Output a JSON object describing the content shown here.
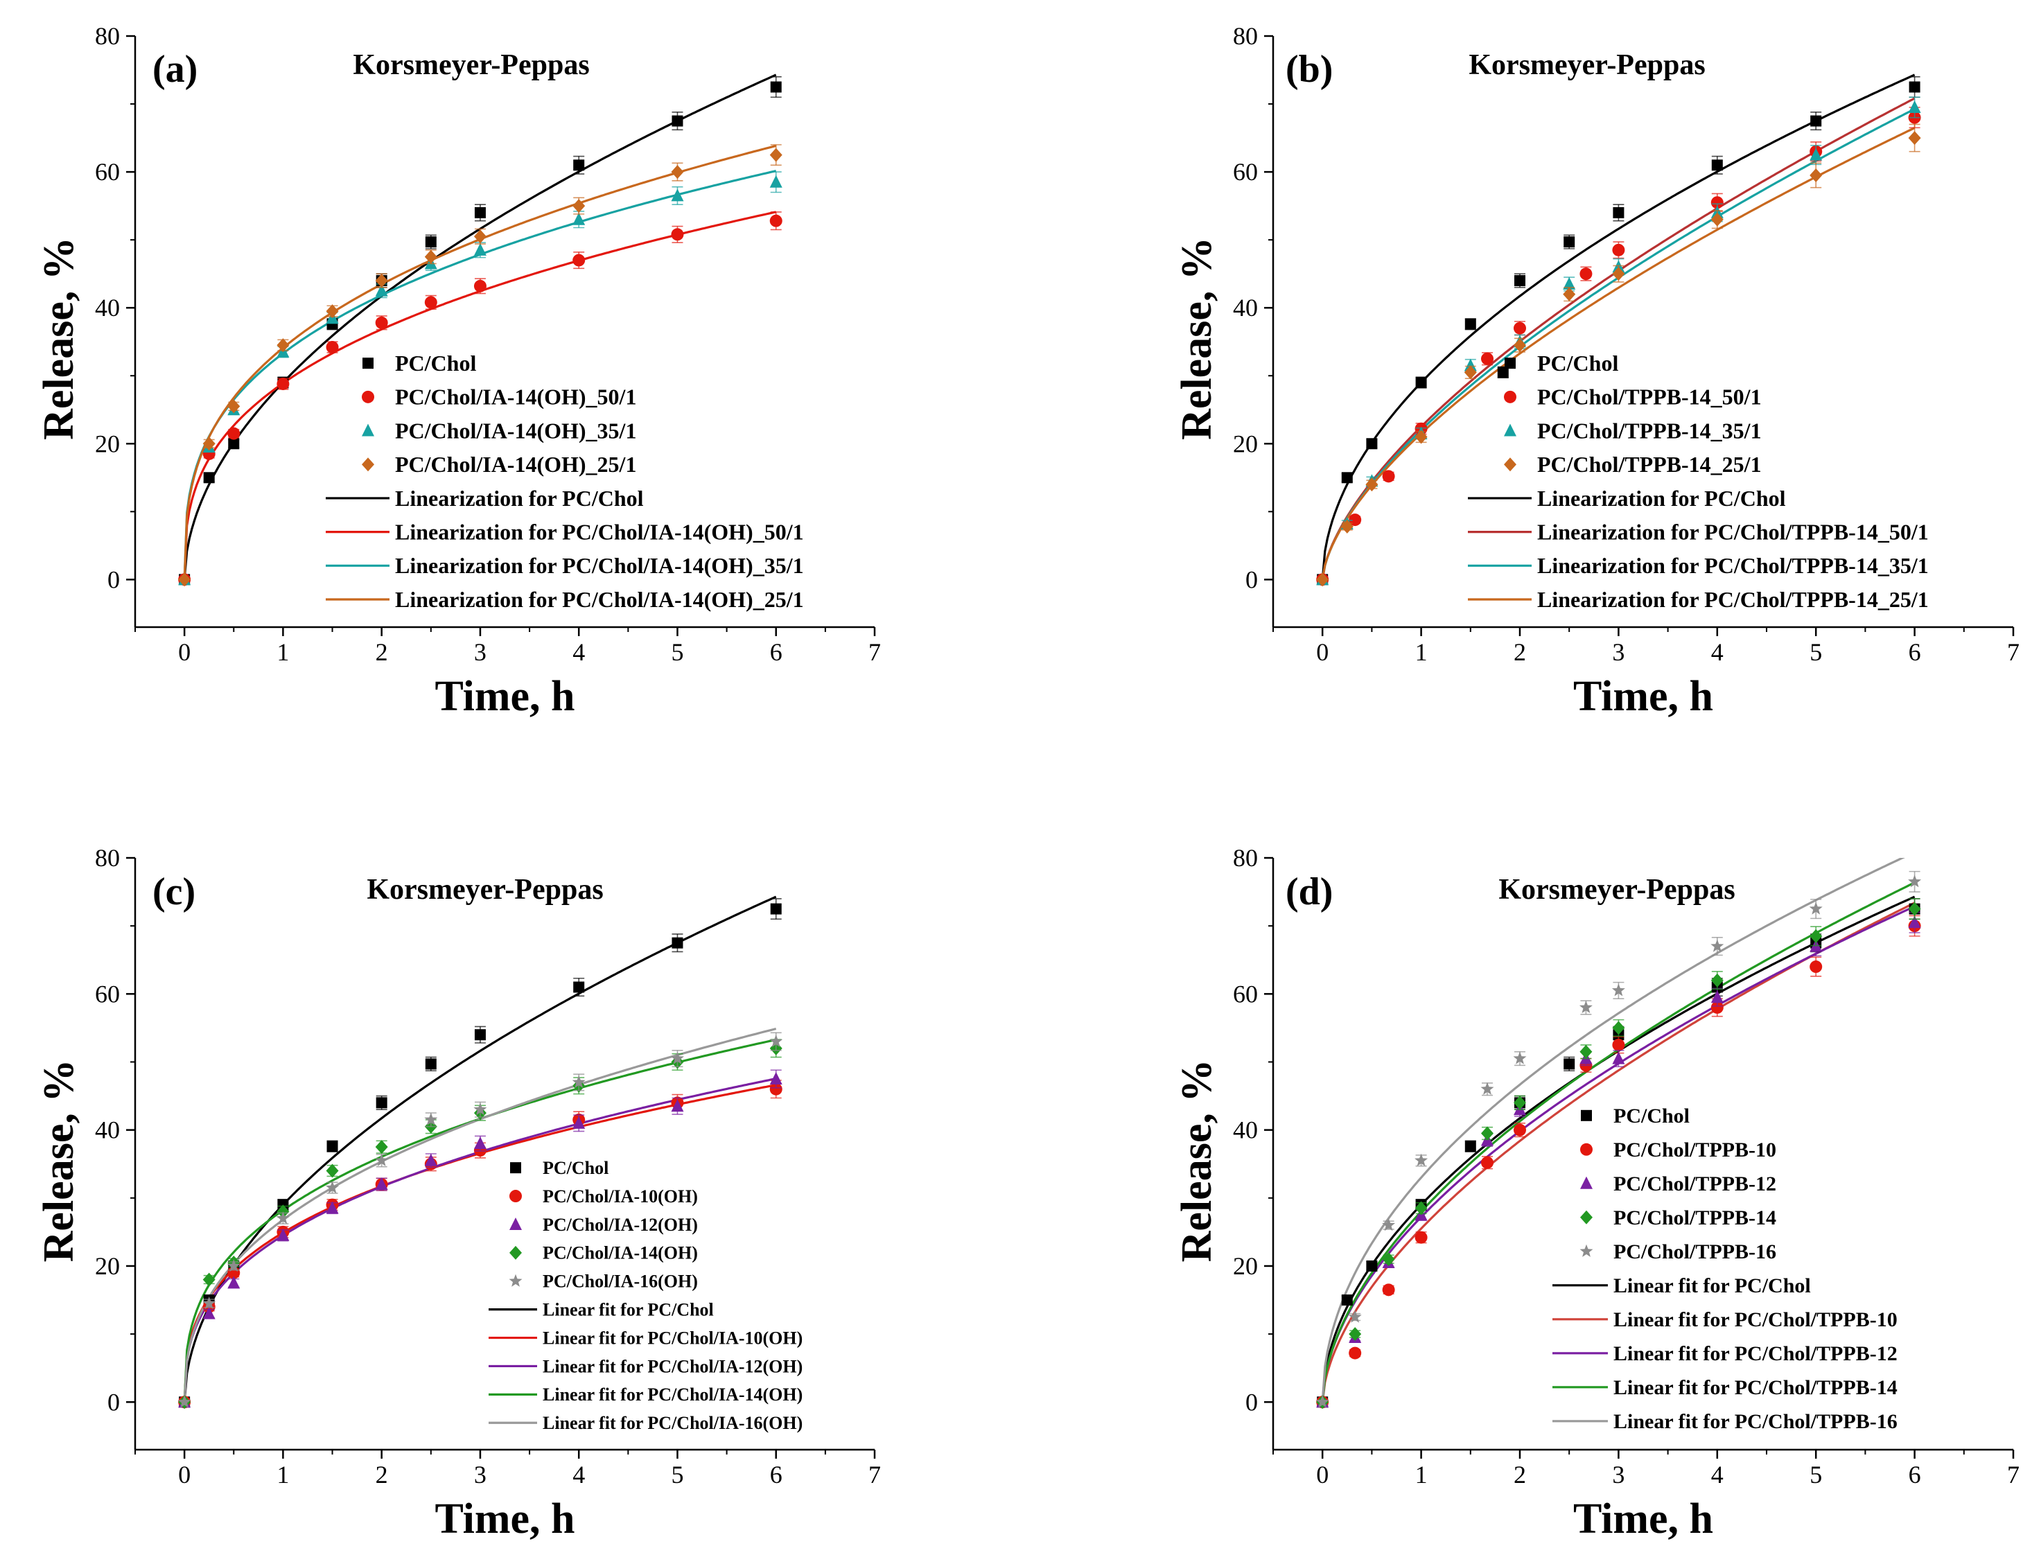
{
  "chart_data": [
    {
      "type": "scatter",
      "panel_label": "(a)",
      "title": "Korsmeyer-Peppas",
      "xlabel": "Time, h",
      "ylabel": "Release, %",
      "xlim": [
        -0.5,
        7
      ],
      "ylim": [
        -7,
        80
      ],
      "xticks": [
        0,
        1,
        2,
        3,
        4,
        5,
        6,
        7
      ],
      "yticks": [
        0,
        20,
        40,
        60,
        80
      ],
      "legend_position": "center-right",
      "series": [
        {
          "name": "PC/Chol",
          "marker": "square",
          "color": "#000000",
          "x": [
            0,
            0.25,
            0.5,
            1,
            1.5,
            2,
            2.5,
            3,
            4,
            5,
            6
          ],
          "y": [
            0,
            15.0,
            20.0,
            29.0,
            37.6,
            44.0,
            49.7,
            54.0,
            61.0,
            67.5,
            72.5
          ],
          "err": [
            0,
            0.6,
            0.6,
            0.8,
            0.8,
            1.0,
            1.0,
            1.2,
            1.3,
            1.3,
            1.5
          ]
        },
        {
          "name": "PC/Chol/IA-14(OH)_50/1",
          "marker": "circle",
          "color": "#e3170d",
          "x": [
            0,
            0.25,
            0.5,
            1,
            1.5,
            2,
            2.5,
            3,
            4,
            5,
            6
          ],
          "y": [
            0,
            18.5,
            21.5,
            28.8,
            34.2,
            37.8,
            40.8,
            43.2,
            47.0,
            50.8,
            52.8
          ],
          "err": [
            0,
            0.6,
            0.6,
            0.8,
            0.8,
            1.0,
            1.0,
            1.1,
            1.2,
            1.2,
            1.3
          ]
        },
        {
          "name": "PC/Chol/IA-14(OH)_35/1",
          "marker": "triangle",
          "color": "#17a2a2",
          "x": [
            0,
            0.25,
            0.5,
            1,
            1.5,
            2,
            2.5,
            3,
            4,
            5,
            6
          ],
          "y": [
            0,
            19.5,
            25.0,
            33.5,
            38.5,
            42.5,
            46.5,
            48.5,
            53.0,
            56.5,
            58.5
          ],
          "err": [
            0,
            0.6,
            0.6,
            0.8,
            0.8,
            1.0,
            1.0,
            1.1,
            1.2,
            1.3,
            1.5
          ]
        },
        {
          "name": "PC/Chol/IA-14(OH)_25/1",
          "marker": "diamond",
          "color": "#c8681e",
          "x": [
            0,
            0.25,
            0.5,
            1,
            1.5,
            2,
            2.5,
            3,
            4,
            5,
            6
          ],
          "y": [
            0,
            20.0,
            25.5,
            34.5,
            39.5,
            44.0,
            47.5,
            50.5,
            55.0,
            60.0,
            62.5
          ],
          "err": [
            0,
            0.6,
            0.6,
            0.8,
            0.8,
            1.0,
            1.0,
            1.1,
            1.2,
            1.3,
            1.5
          ]
        }
      ],
      "fits": [
        {
          "name": "Linearization for PC/Chol",
          "color": "#000000",
          "k": 29.0,
          "n": 0.525
        },
        {
          "name": "Linearization for PC/Chol/IA-14(OH)_50/1",
          "color": "#e3170d",
          "k": 28.9,
          "n": 0.35
        },
        {
          "name": "Linearization for PC/Chol/IA-14(OH)_35/1",
          "color": "#17a2a2",
          "k": 33.3,
          "n": 0.33
        },
        {
          "name": "Linearization for PC/Chol/IA-14(OH)_25/1",
          "color": "#c8681e",
          "k": 34.1,
          "n": 0.35
        }
      ]
    },
    {
      "type": "scatter",
      "panel_label": "(b)",
      "title": "Korsmeyer-Peppas",
      "xlabel": "Time, h",
      "ylabel": "Release, %",
      "xlim": [
        -0.5,
        7
      ],
      "ylim": [
        -7,
        80
      ],
      "xticks": [
        0,
        1,
        2,
        3,
        4,
        5,
        6,
        7
      ],
      "yticks": [
        0,
        20,
        40,
        60,
        80
      ],
      "legend_position": "bottom-right",
      "series": [
        {
          "name": "PC/Chol",
          "marker": "square",
          "color": "#000000",
          "x": [
            0,
            0.25,
            0.5,
            1,
            1.5,
            1.83,
            2,
            2.5,
            3,
            4,
            5,
            6
          ],
          "y": [
            0,
            15.0,
            20.0,
            29.0,
            37.6,
            30.5,
            44.0,
            49.7,
            54.0,
            61.0,
            67.5,
            72.5
          ],
          "err": [
            0,
            0.6,
            0.6,
            0.8,
            0.8,
            0.8,
            1.0,
            1.0,
            1.2,
            1.3,
            1.3,
            1.5
          ]
        },
        {
          "name": "PC/Chol/TPPB-14_50/1",
          "marker": "circle",
          "color": "#e3170d",
          "x": [
            0,
            0.33,
            0.67,
            1,
            1.67,
            2,
            2.67,
            3,
            4,
            5,
            6
          ],
          "y": [
            0,
            8.8,
            15.2,
            22.2,
            32.5,
            37.0,
            45.0,
            48.5,
            55.5,
            63.0,
            68.0
          ],
          "err": [
            0,
            0.5,
            0.6,
            0.8,
            0.9,
            1.0,
            1.0,
            1.2,
            1.3,
            1.4,
            1.5
          ]
        },
        {
          "name": "PC/Chol/TPPB-14_35/1",
          "marker": "triangle",
          "color": "#17a2a2",
          "x": [
            0,
            0.25,
            0.5,
            1,
            1.5,
            2,
            2.5,
            3,
            4,
            5,
            6
          ],
          "y": [
            0,
            8.2,
            14.5,
            21.5,
            31.5,
            35.0,
            43.5,
            46.0,
            54.0,
            62.5,
            69.5
          ],
          "err": [
            0,
            0.5,
            0.6,
            0.8,
            0.9,
            1.0,
            1.0,
            1.2,
            1.3,
            1.4,
            1.5
          ]
        },
        {
          "name": "PC/Chol/TPPB-14_25/1",
          "marker": "diamond",
          "color": "#c8681e",
          "x": [
            0,
            0.25,
            0.5,
            1,
            1.5,
            2,
            2.5,
            3,
            4,
            5,
            6
          ],
          "y": [
            0,
            7.8,
            14.0,
            21.0,
            30.5,
            34.5,
            42.0,
            45.0,
            53.0,
            59.5,
            65.0
          ],
          "err": [
            0,
            0.5,
            0.6,
            0.8,
            0.9,
            1.0,
            1.0,
            1.2,
            1.3,
            1.8,
            2.0
          ]
        }
      ],
      "fits": [
        {
          "name": "Linearization for PC/Chol",
          "color": "#000000",
          "k": 29.0,
          "n": 0.525
        },
        {
          "name": "Linearization for PC/Chol/TPPB-14_50/1",
          "color": "#b83232",
          "k": 22.5,
          "n": 0.64
        },
        {
          "name": "Linearization for PC/Chol/TPPB-14_35/1",
          "color": "#17a2a2",
          "k": 22.0,
          "n": 0.64
        },
        {
          "name": "Linearization for PC/Chol/TPPB-14_25/1",
          "color": "#c8681e",
          "k": 21.5,
          "n": 0.63
        }
      ]
    },
    {
      "type": "scatter",
      "panel_label": "(c)",
      "title": "Korsmeyer-Peppas",
      "xlabel": "Time, h",
      "ylabel": "Release, %",
      "xlim": [
        -0.5,
        7
      ],
      "ylim": [
        -7,
        80
      ],
      "xticks": [
        0,
        1,
        2,
        3,
        4,
        5,
        6,
        7
      ],
      "yticks": [
        0,
        20,
        40,
        60,
        80
      ],
      "legend_position": "bottom-right",
      "series": [
        {
          "name": "PC/Chol",
          "marker": "square",
          "color": "#000000",
          "x": [
            0,
            0.25,
            0.5,
            1,
            1.5,
            2,
            2.5,
            3,
            4,
            5,
            6
          ],
          "y": [
            0,
            15.0,
            20.0,
            29.0,
            37.6,
            44.0,
            49.7,
            54.0,
            61.0,
            67.5,
            72.5
          ],
          "err": [
            0,
            0.6,
            0.6,
            0.8,
            0.8,
            1.0,
            1.0,
            1.2,
            1.3,
            1.3,
            1.5
          ]
        },
        {
          "name": "PC/Chol/IA-10(OH)",
          "marker": "circle",
          "color": "#e3170d",
          "x": [
            0,
            0.25,
            0.5,
            1,
            1.5,
            2,
            2.5,
            3,
            4,
            5,
            6
          ],
          "y": [
            0,
            14.0,
            19.0,
            25.0,
            29.0,
            32.0,
            35.0,
            37.0,
            41.5,
            44.0,
            46.0
          ],
          "err": [
            0,
            0.6,
            0.6,
            0.8,
            0.8,
            0.9,
            1.0,
            1.1,
            1.2,
            1.2,
            1.3
          ]
        },
        {
          "name": "PC/Chol/IA-12(OH)",
          "marker": "triangle",
          "color": "#7a1fa2",
          "x": [
            0,
            0.25,
            0.5,
            1,
            1.5,
            2,
            2.5,
            3,
            4,
            5,
            6
          ],
          "y": [
            0,
            13.0,
            17.5,
            24.5,
            28.5,
            32.0,
            35.5,
            38.0,
            41.0,
            43.5,
            47.5
          ],
          "err": [
            0,
            0.6,
            0.6,
            0.8,
            0.8,
            0.9,
            1.0,
            1.1,
            1.2,
            1.2,
            1.3
          ]
        },
        {
          "name": "PC/Chol/IA-14(OH)",
          "marker": "diamond",
          "color": "#229922",
          "x": [
            0,
            0.25,
            0.5,
            1,
            1.5,
            2,
            2.5,
            3,
            4,
            5,
            6
          ],
          "y": [
            0,
            18.0,
            20.5,
            28.0,
            34.0,
            37.5,
            40.5,
            42.5,
            46.5,
            50.0,
            52.0
          ],
          "err": [
            0,
            0.6,
            0.6,
            0.8,
            0.8,
            0.9,
            1.0,
            1.1,
            1.2,
            1.2,
            1.3
          ]
        },
        {
          "name": "PC/Chol/IA-16(OH)",
          "marker": "star",
          "color": "#8c8c8c",
          "x": [
            0,
            0.25,
            0.5,
            1,
            1.5,
            2,
            2.5,
            3,
            4,
            5,
            6
          ],
          "y": [
            0,
            14.5,
            20.0,
            27.0,
            31.5,
            35.5,
            41.5,
            43.0,
            47.0,
            50.5,
            53.0
          ],
          "err": [
            0,
            0.6,
            0.6,
            0.8,
            0.8,
            0.9,
            1.0,
            1.1,
            1.2,
            1.2,
            1.3
          ]
        }
      ],
      "fits": [
        {
          "name": "Linear fit for PC/Chol",
          "color": "#000000",
          "k": 29.0,
          "n": 0.525
        },
        {
          "name": "Linear fit for PC/Chol/IA-10(OH)",
          "color": "#e3170d",
          "k": 24.9,
          "n": 0.35
        },
        {
          "name": "Linear fit for PC/Chol/IA-12(OH)",
          "color": "#7a1fa2",
          "k": 24.5,
          "n": 0.37
        },
        {
          "name": "Linear fit for PC/Chol/IA-14(OH)",
          "color": "#229922",
          "k": 28.2,
          "n": 0.355
        },
        {
          "name": "Linear fit for PC/Chol/IA-16(OH)",
          "color": "#999999",
          "k": 26.8,
          "n": 0.4
        }
      ]
    },
    {
      "type": "scatter",
      "panel_label": "(d)",
      "title": "Korsmeyer-Peppas",
      "xlabel": "Time, h",
      "ylabel": "Release, %",
      "xlim": [
        -0.5,
        7
      ],
      "ylim": [
        -7,
        80
      ],
      "xticks": [
        0,
        1,
        2,
        3,
        4,
        5,
        6,
        7
      ],
      "yticks": [
        0,
        20,
        40,
        60,
        80
      ],
      "legend_position": "bottom-right",
      "series": [
        {
          "name": "PC/Chol",
          "marker": "square",
          "color": "#000000",
          "x": [
            0,
            0.25,
            0.5,
            1,
            1.5,
            2,
            2.5,
            3,
            4,
            5,
            6
          ],
          "y": [
            0,
            15.0,
            20.0,
            29.0,
            37.6,
            44.0,
            49.7,
            54.0,
            61.0,
            67.5,
            72.5
          ],
          "err": [
            0,
            0.6,
            0.6,
            0.8,
            0.8,
            1.0,
            1.0,
            1.2,
            1.3,
            1.3,
            1.5
          ]
        },
        {
          "name": "PC/Chol/TPPB-10",
          "marker": "circle",
          "color": "#e3170d",
          "x": [
            0,
            0.33,
            0.67,
            1,
            1.67,
            2,
            2.67,
            3,
            4,
            5,
            6
          ],
          "y": [
            0,
            7.2,
            16.5,
            24.2,
            35.2,
            40.0,
            49.5,
            52.5,
            58.0,
            64.0,
            70.0
          ],
          "err": [
            0,
            0.5,
            0.6,
            0.8,
            0.9,
            1.0,
            1.0,
            1.2,
            1.3,
            1.4,
            1.5
          ]
        },
        {
          "name": "PC/Chol/TPPB-12",
          "marker": "triangle",
          "color": "#7a1fa2",
          "x": [
            0,
            0.33,
            0.67,
            1,
            1.67,
            2,
            2.67,
            3,
            4,
            5,
            6
          ],
          "y": [
            0,
            9.5,
            20.5,
            27.5,
            38.5,
            43.0,
            50.5,
            50.5,
            59.5,
            67.0,
            70.5
          ],
          "err": [
            0,
            0.5,
            0.6,
            0.8,
            0.9,
            1.0,
            1.0,
            1.2,
            1.3,
            1.4,
            1.5
          ]
        },
        {
          "name": "PC/Chol/TPPB-14",
          "marker": "diamond",
          "color": "#229922",
          "x": [
            0,
            0.33,
            0.67,
            1,
            1.67,
            2,
            2.67,
            3,
            4,
            5,
            6
          ],
          "y": [
            0,
            10.0,
            21.0,
            28.5,
            39.5,
            44.0,
            51.5,
            55.0,
            62.0,
            68.5,
            72.5
          ],
          "err": [
            0,
            0.5,
            0.6,
            0.8,
            0.9,
            1.0,
            1.0,
            1.2,
            1.3,
            1.4,
            1.5
          ]
        },
        {
          "name": "PC/Chol/TPPB-16",
          "marker": "star",
          "color": "#8c8c8c",
          "x": [
            0,
            0.33,
            0.67,
            1,
            1.67,
            2,
            2.67,
            3,
            4,
            5,
            6
          ],
          "y": [
            0,
            12.5,
            26.0,
            35.5,
            46.0,
            50.5,
            58.0,
            60.5,
            67.0,
            72.5,
            76.5
          ],
          "err": [
            0,
            0.5,
            0.6,
            0.8,
            0.9,
            1.0,
            1.0,
            1.2,
            1.3,
            1.4,
            1.5
          ]
        }
      ],
      "fits": [
        {
          "name": "Linear fit for PC/Chol",
          "color": "#000000",
          "k": 29.0,
          "n": 0.525
        },
        {
          "name": "Linear fit for PC/Chol/TPPB-10",
          "color": "#d0433a",
          "k": 25.5,
          "n": 0.59
        },
        {
          "name": "Linear fit for PC/Chol/TPPB-12",
          "color": "#7a1fa2",
          "k": 27.2,
          "n": 0.55
        },
        {
          "name": "Linear fit for PC/Chol/TPPB-14",
          "color": "#229922",
          "k": 28.0,
          "n": 0.56
        },
        {
          "name": "Linear fit for PC/Chol/TPPB-16",
          "color": "#999999",
          "k": 33.0,
          "n": 0.5
        }
      ]
    }
  ]
}
